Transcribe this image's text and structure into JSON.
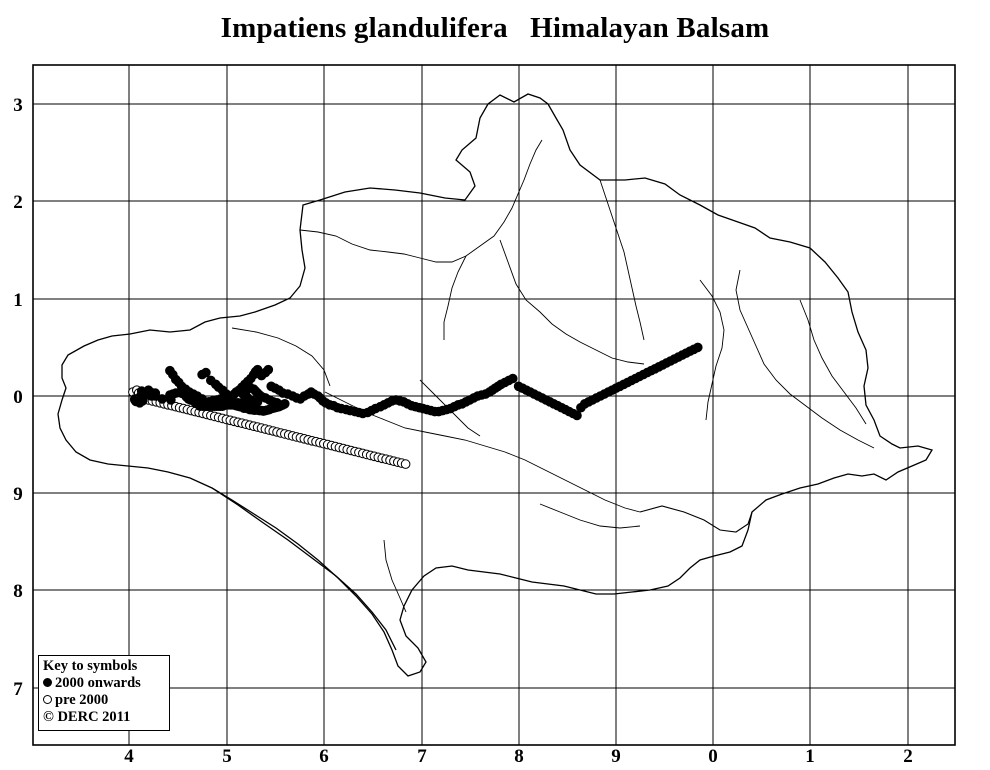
{
  "title": "Impatiens glandulifera   Himalayan Balsam",
  "grid": {
    "x_labels": [
      "4",
      "5",
      "6",
      "7",
      "8",
      "9",
      "0",
      "1",
      "2"
    ],
    "y_labels": [
      "3",
      "2",
      "1",
      "0",
      "9",
      "8",
      "7"
    ]
  },
  "key": {
    "heading": "Key to symbols",
    "recent_label": "2000 onwards",
    "old_label": "pre 2000",
    "copyright": "© DERC 2011"
  },
  "colors": {
    "ink": "#000000",
    "background": "#ffffff"
  },
  "records": {
    "recent": [
      [
        40.6,
        39.7
      ],
      [
        40.8,
        39.7
      ],
      [
        41.0,
        39.7
      ],
      [
        41.2,
        39.7
      ],
      [
        40.6,
        39.6
      ],
      [
        41.1,
        39.55
      ],
      [
        41.4,
        39.5
      ],
      [
        41.0,
        39.4
      ],
      [
        41.1,
        39.3
      ],
      [
        40.7,
        39.45
      ],
      [
        41.3,
        40.1
      ],
      [
        41.3,
        40.5
      ],
      [
        41.5,
        39.9
      ],
      [
        42.0,
        40.6
      ],
      [
        42.5,
        40.3
      ],
      [
        42.3,
        40.0
      ],
      [
        42.7,
        40.0
      ],
      [
        42.7,
        40.3
      ],
      [
        43.4,
        39.7
      ],
      [
        44.3,
        39.6
      ],
      [
        44.2,
        40.1
      ],
      [
        44.5,
        40.2
      ],
      [
        44.8,
        40.3
      ],
      [
        45.2,
        40.35
      ],
      [
        45.5,
        40.25
      ],
      [
        45.8,
        40.1
      ],
      [
        45.9,
        39.9
      ],
      [
        46.1,
        39.7
      ],
      [
        46.3,
        39.6
      ],
      [
        46.6,
        39.5
      ],
      [
        46.8,
        39.35
      ],
      [
        47.0,
        39.2
      ],
      [
        47.2,
        39.1
      ],
      [
        47.3,
        38.95
      ],
      [
        47.6,
        38.95
      ],
      [
        47.8,
        38.95
      ],
      [
        48.0,
        38.95
      ],
      [
        48.2,
        38.95
      ],
      [
        48.4,
        38.95
      ],
      [
        48.6,
        38.95
      ],
      [
        48.8,
        38.95
      ],
      [
        49.0,
        38.95
      ],
      [
        49.2,
        38.95
      ],
      [
        49.4,
        38.95
      ],
      [
        49.6,
        38.95
      ],
      [
        49.8,
        39.05
      ],
      [
        50.0,
        39.1
      ],
      [
        50.2,
        39.1
      ],
      [
        50.4,
        39.1
      ],
      [
        50.6,
        39.1
      ],
      [
        50.8,
        39.1
      ],
      [
        51.0,
        39.0
      ],
      [
        51.2,
        38.95
      ],
      [
        51.4,
        38.9
      ],
      [
        51.6,
        38.9
      ],
      [
        51.8,
        38.75
      ],
      [
        52.0,
        38.75
      ],
      [
        52.2,
        38.7
      ],
      [
        52.4,
        38.6
      ],
      [
        52.6,
        38.6
      ],
      [
        52.8,
        38.55
      ],
      [
        53.0,
        38.55
      ],
      [
        53.2,
        38.55
      ],
      [
        53.4,
        38.5
      ],
      [
        53.6,
        38.5
      ],
      [
        53.8,
        38.45
      ],
      [
        54.0,
        38.5
      ],
      [
        54.2,
        38.55
      ],
      [
        54.4,
        38.6
      ],
      [
        54.6,
        38.7
      ],
      [
        54.8,
        38.75
      ],
      [
        55.0,
        38.8
      ],
      [
        55.2,
        38.85
      ],
      [
        55.4,
        38.9
      ],
      [
        55.6,
        39.0
      ],
      [
        55.8,
        39.1
      ],
      [
        56.0,
        39.2
      ],
      [
        53.0,
        39.2
      ],
      [
        53.2,
        39.4
      ],
      [
        52.6,
        39.55
      ],
      [
        52.2,
        39.8
      ],
      [
        51.9,
        40.0
      ],
      [
        51.7,
        40.2
      ],
      [
        51.5,
        40.4
      ],
      [
        52.0,
        40.5
      ],
      [
        52.4,
        40.9
      ],
      [
        52.8,
        40.7
      ],
      [
        53.0,
        40.5
      ],
      [
        53.2,
        40.3
      ],
      [
        53.4,
        40.1
      ],
      [
        53.6,
        39.95
      ],
      [
        54.0,
        39.8
      ],
      [
        54.4,
        39.6
      ],
      [
        54.8,
        39.4
      ],
      [
        55.2,
        39.3
      ],
      [
        48.2,
        39.4
      ],
      [
        48.6,
        39.5
      ],
      [
        49.0,
        39.6
      ],
      [
        49.4,
        39.7
      ],
      [
        49.8,
        39.75
      ],
      [
        50.2,
        39.8
      ],
      [
        50.5,
        40.0
      ],
      [
        50.8,
        40.2
      ],
      [
        51.0,
        40.4
      ],
      [
        51.3,
        40.6
      ],
      [
        51.6,
        40.9
      ],
      [
        51.9,
        41.2
      ],
      [
        52.2,
        41.5
      ],
      [
        52.5,
        41.8
      ],
      [
        52.8,
        42.2
      ],
      [
        53.0,
        42.5
      ],
      [
        53.2,
        42.7
      ],
      [
        47.5,
        39.7
      ],
      [
        47.0,
        40.0
      ],
      [
        46.6,
        40.2
      ],
      [
        46.2,
        40.4
      ],
      [
        45.8,
        40.7
      ],
      [
        45.4,
        41.0
      ],
      [
        45.1,
        41.4
      ],
      [
        44.8,
        41.7
      ],
      [
        44.5,
        42.2
      ],
      [
        44.2,
        42.6
      ],
      [
        47.5,
        42.2
      ],
      [
        47.9,
        42.4
      ],
      [
        48.4,
        41.6
      ],
      [
        48.9,
        41.2
      ],
      [
        49.2,
        40.9
      ],
      [
        49.6,
        40.6
      ],
      [
        50.0,
        40.2
      ],
      [
        50.8,
        39.35
      ],
      [
        51.2,
        39.3
      ],
      [
        51.6,
        39.3
      ],
      [
        52.0,
        39.4
      ],
      [
        53.6,
        42.1
      ],
      [
        54.0,
        42.4
      ],
      [
        54.3,
        42.7
      ],
      [
        54.6,
        41.0
      ],
      [
        55.0,
        40.8
      ],
      [
        55.4,
        40.6
      ],
      [
        55.8,
        40.3
      ],
      [
        56.3,
        40.2
      ],
      [
        56.8,
        40.0
      ],
      [
        57.2,
        39.8
      ],
      [
        57.6,
        39.7
      ],
      [
        58.0,
        40.0
      ],
      [
        58.4,
        40.2
      ],
      [
        58.7,
        40.4
      ],
      [
        59.0,
        40.2
      ],
      [
        59.4,
        40.0
      ],
      [
        59.6,
        39.8
      ],
      [
        59.9,
        39.5
      ],
      [
        60.2,
        39.3
      ],
      [
        60.6,
        39.1
      ],
      [
        61.0,
        39.0
      ],
      [
        61.4,
        38.8
      ],
      [
        61.8,
        38.7
      ],
      [
        62.3,
        38.6
      ],
      [
        62.7,
        38.5
      ],
      [
        63.2,
        38.4
      ],
      [
        63.6,
        38.3
      ],
      [
        64.0,
        38.2
      ],
      [
        64.5,
        38.3
      ],
      [
        64.9,
        38.5
      ],
      [
        65.3,
        38.7
      ],
      [
        65.8,
        38.9
      ],
      [
        66.2,
        39.1
      ],
      [
        66.6,
        39.3
      ],
      [
        67.0,
        39.5
      ],
      [
        67.4,
        39.6
      ],
      [
        67.8,
        39.5
      ],
      [
        68.2,
        39.4
      ],
      [
        68.6,
        39.2
      ],
      [
        69.0,
        39.0
      ],
      [
        69.4,
        38.9
      ],
      [
        69.8,
        38.8
      ],
      [
        70.2,
        38.7
      ],
      [
        70.6,
        38.6
      ],
      [
        71.0,
        38.5
      ],
      [
        71.4,
        38.4
      ],
      [
        71.8,
        38.4
      ],
      [
        72.2,
        38.5
      ],
      [
        72.6,
        38.6
      ],
      [
        73.0,
        38.7
      ],
      [
        73.4,
        38.9
      ],
      [
        73.8,
        39.1
      ],
      [
        74.2,
        39.2
      ],
      [
        74.6,
        39.4
      ],
      [
        75.0,
        39.6
      ],
      [
        75.4,
        39.8
      ],
      [
        75.8,
        40.0
      ],
      [
        76.2,
        40.1
      ],
      [
        76.6,
        40.2
      ],
      [
        77.0,
        40.4
      ],
      [
        77.3,
        40.6
      ],
      [
        77.6,
        40.8
      ],
      [
        77.9,
        41.0
      ],
      [
        78.2,
        41.2
      ],
      [
        78.6,
        41.4
      ],
      [
        79.0,
        41.6
      ],
      [
        79.4,
        41.8
      ],
      [
        80.0,
        41.0
      ],
      [
        80.4,
        40.8
      ],
      [
        80.8,
        40.6
      ],
      [
        81.2,
        40.4
      ],
      [
        81.6,
        40.2
      ],
      [
        82.0,
        40.0
      ],
      [
        82.4,
        39.8
      ],
      [
        82.8,
        39.6
      ],
      [
        83.2,
        39.4
      ],
      [
        83.6,
        39.2
      ],
      [
        84.0,
        39.0
      ],
      [
        84.4,
        38.8
      ],
      [
        84.8,
        38.6
      ],
      [
        85.2,
        38.4
      ],
      [
        85.6,
        38.2
      ],
      [
        86.0,
        38.0
      ],
      [
        86.4,
        38.8
      ],
      [
        86.8,
        39.2
      ],
      [
        87.2,
        39.4
      ],
      [
        87.6,
        39.6
      ],
      [
        88.0,
        39.8
      ],
      [
        88.4,
        40.0
      ],
      [
        88.8,
        40.2
      ],
      [
        89.2,
        40.4
      ],
      [
        89.6,
        40.6
      ],
      [
        90.0,
        40.8
      ],
      [
        90.4,
        41.0
      ],
      [
        90.8,
        41.2
      ],
      [
        91.2,
        41.4
      ],
      [
        91.6,
        41.6
      ],
      [
        92.0,
        41.8
      ],
      [
        92.4,
        42.0
      ],
      [
        92.8,
        42.2
      ],
      [
        93.2,
        42.4
      ],
      [
        93.6,
        42.6
      ],
      [
        94.0,
        42.8
      ],
      [
        94.4,
        43.0
      ],
      [
        94.8,
        43.2
      ],
      [
        95.2,
        43.4
      ],
      [
        95.6,
        43.6
      ],
      [
        96.0,
        43.8
      ],
      [
        96.4,
        44.0
      ],
      [
        96.8,
        44.2
      ],
      [
        97.2,
        44.4
      ],
      [
        97.6,
        44.6
      ],
      [
        98.0,
        44.8
      ],
      [
        98.4,
        45.0
      ]
    ],
    "old": [
      [
        40.4,
        40.4
      ],
      [
        40.8,
        40.6
      ],
      [
        41.0,
        40.3
      ],
      [
        41.2,
        40.0
      ],
      [
        41.6,
        39.8
      ],
      [
        42.0,
        39.6
      ],
      [
        42.4,
        39.5
      ],
      [
        42.8,
        39.4
      ],
      [
        43.2,
        39.3
      ],
      [
        43.6,
        39.2
      ],
      [
        44.0,
        39.1
      ],
      [
        44.4,
        39.0
      ],
      [
        44.8,
        38.9
      ],
      [
        45.2,
        38.8
      ],
      [
        45.6,
        38.7
      ],
      [
        46.0,
        38.6
      ],
      [
        46.4,
        38.5
      ],
      [
        46.8,
        38.4
      ],
      [
        47.2,
        38.3
      ],
      [
        47.6,
        38.2
      ],
      [
        48.0,
        38.1
      ],
      [
        48.4,
        38.0
      ],
      [
        48.8,
        37.9
      ],
      [
        49.2,
        37.8
      ],
      [
        49.6,
        37.7
      ],
      [
        50.0,
        37.6
      ],
      [
        50.4,
        37.5
      ],
      [
        50.8,
        37.4
      ],
      [
        51.2,
        37.3
      ],
      [
        51.6,
        37.2
      ],
      [
        52.0,
        37.1
      ],
      [
        52.4,
        37.0
      ],
      [
        52.8,
        36.9
      ],
      [
        53.2,
        36.8
      ],
      [
        53.6,
        36.7
      ],
      [
        54.0,
        36.6
      ],
      [
        54.4,
        36.5
      ],
      [
        54.8,
        36.4
      ],
      [
        55.2,
        36.3
      ],
      [
        55.6,
        36.2
      ],
      [
        56.0,
        36.1
      ],
      [
        56.4,
        36.0
      ],
      [
        56.8,
        35.9
      ],
      [
        57.2,
        35.8
      ],
      [
        57.6,
        35.7
      ],
      [
        58.0,
        35.6
      ],
      [
        58.4,
        35.5
      ],
      [
        58.8,
        35.4
      ],
      [
        59.2,
        35.3
      ],
      [
        59.6,
        35.2
      ],
      [
        60.0,
        35.1
      ],
      [
        60.4,
        35.0
      ],
      [
        60.8,
        34.9
      ],
      [
        61.2,
        34.8
      ],
      [
        61.6,
        34.7
      ],
      [
        62.0,
        34.6
      ],
      [
        62.4,
        34.5
      ],
      [
        62.8,
        34.4
      ],
      [
        63.2,
        34.3
      ],
      [
        63.6,
        34.2
      ],
      [
        64.0,
        34.1
      ],
      [
        64.4,
        34.0
      ],
      [
        64.8,
        33.9
      ],
      [
        65.2,
        33.8
      ],
      [
        65.6,
        33.7
      ],
      [
        66.0,
        33.6
      ],
      [
        66.4,
        33.5
      ],
      [
        66.8,
        33.4
      ],
      [
        67.2,
        33.3
      ],
      [
        67.6,
        33.2
      ],
      [
        68.0,
        33.1
      ],
      [
        68.4,
        33.0
      ]
    ]
  }
}
